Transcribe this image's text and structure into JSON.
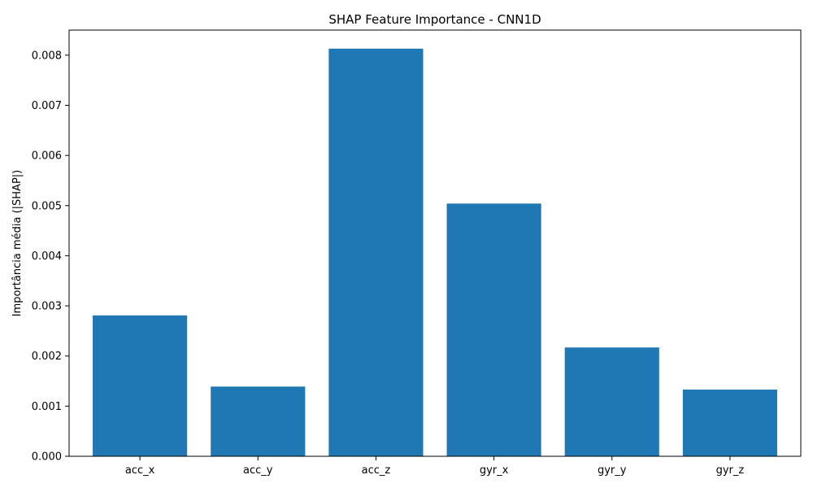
{
  "chart_data": {
    "type": "bar",
    "title": "SHAP Feature Importance - CNN1D",
    "xlabel": "",
    "ylabel": "Importância média (|SHAP|)",
    "categories": [
      "acc_x",
      "acc_y",
      "acc_z",
      "gyr_x",
      "gyr_y",
      "gyr_z"
    ],
    "values": [
      0.00281,
      0.00139,
      0.00813,
      0.00504,
      0.00217,
      0.00133
    ],
    "ylim": [
      0,
      0.0085
    ],
    "yticks": [
      "0.000",
      "0.001",
      "0.002",
      "0.003",
      "0.004",
      "0.005",
      "0.006",
      "0.007",
      "0.008"
    ],
    "bar_color": "#1f77b4",
    "grid": false,
    "legend": "none"
  }
}
